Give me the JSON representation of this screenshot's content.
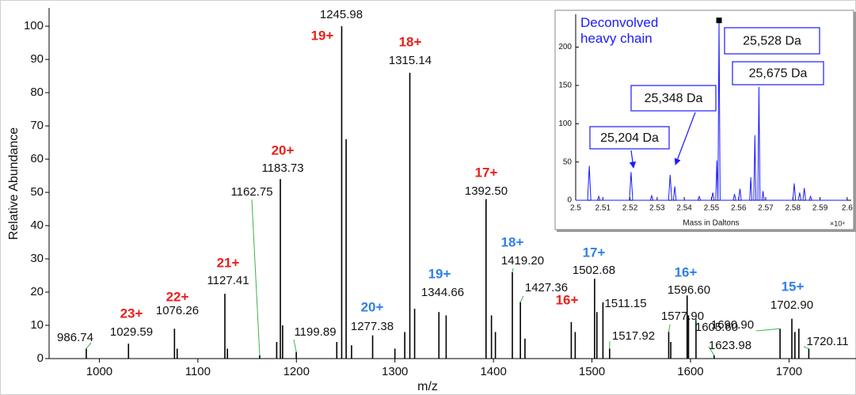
{
  "chart_data": [
    {
      "type": "spectrum",
      "x_label": "m/z",
      "y_label": "Relative Abundance",
      "xlim": [
        949,
        1768
      ],
      "xticks": [
        1000,
        1100,
        1200,
        1300,
        1400,
        1500,
        1600,
        1700
      ],
      "ylim": [
        0,
        105.5
      ],
      "yticks": [
        0,
        10,
        20,
        30,
        40,
        50,
        60,
        70,
        80,
        90,
        100
      ],
      "series": [
        {
          "color": "#000000",
          "x": [
            986.74,
            1029.59,
            1076.26,
            1127.41,
            1162.75,
            1183.73,
            1199.89,
            1245.98,
            1277.38,
            1315.14,
            1344.66,
            1392.5,
            1419.2,
            1427.36,
            1502.68,
            1511.15,
            1517.92,
            1577.9,
            1596.6,
            1605.6,
            1623.98,
            1690.9,
            1702.9,
            1720.11
          ],
          "values": [
            3,
            4.5,
            9,
            19.5,
            1,
            54,
            2,
            100,
            7,
            86,
            14,
            48,
            26,
            17,
            24,
            17,
            3,
            8,
            19,
            12,
            1,
            9,
            12,
            3
          ],
          "x_labels": [
            "986.74",
            "1029.59",
            "1076.26",
            "1127.41",
            "1162.75",
            "1183.73",
            "1199.89",
            "1245.98",
            "1277.38",
            "1315.14",
            "1344.66",
            "1392.50",
            "1419.20",
            "1427.36",
            "1502.68",
            "1511.15",
            "1517.92",
            "1577.90",
            "1596.60",
            "1605.60",
            "1623.98",
            "1690.90",
            "1702.90",
            "1720.11"
          ]
        },
        {
          "color": "#000000",
          "x": [
            1079,
            1130,
            1180,
            1186,
            1241,
            1250.5,
            1256,
            1300,
            1310,
            1320,
            1352,
            1398,
            1402,
            1432,
            1479,
            1483,
            1505,
            1580,
            1598,
            1706,
            1710
          ],
          "values": [
            3,
            3,
            5,
            10,
            5,
            66,
            4,
            3,
            8,
            15,
            13,
            13,
            8,
            6,
            11,
            8,
            14,
            5,
            13,
            8,
            9
          ]
        }
      ],
      "charges": [
        {
          "label": "23+",
          "x": 1029.59,
          "color": "#e8201a"
        },
        {
          "label": "22+",
          "x": 1076.26,
          "color": "#e8201a"
        },
        {
          "label": "21+",
          "x": 1127.41,
          "color": "#e8201a"
        },
        {
          "label": "20+",
          "x": 1183.73,
          "color": "#e8201a"
        },
        {
          "label": "19+",
          "x": 1245.98,
          "color": "#e8201a"
        },
        {
          "label": "18+",
          "x": 1315.14,
          "color": "#e8201a"
        },
        {
          "label": "17+",
          "x": 1392.5,
          "color": "#e8201a"
        },
        {
          "label": "16+",
          "x": 1479,
          "color": "#e8201a"
        },
        {
          "label": "20+",
          "x": 1277.38,
          "color": "#2f7fe8"
        },
        {
          "label": "19+",
          "x": 1344.66,
          "color": "#2f7fe8"
        },
        {
          "label": "18+",
          "x": 1419.2,
          "color": "#2f7fe8"
        },
        {
          "label": "17+",
          "x": 1502.68,
          "color": "#2f7fe8"
        },
        {
          "label": "16+",
          "x": 1596.6,
          "color": "#2f7fe8"
        },
        {
          "label": "15+",
          "x": 1702.9,
          "color": "#2f7fe8"
        }
      ]
    },
    {
      "type": "line",
      "title": "Deconvolved heavy chain",
      "x_label": "Mass in Daltons",
      "x_scale_label": "×10⁴",
      "xlim": [
        2.5,
        2.6015
      ],
      "xticks": [
        2.5,
        2.51,
        2.52,
        2.53,
        2.54,
        2.55,
        2.56,
        2.57,
        2.58,
        2.59,
        2.6
      ],
      "ylim": [
        0,
        243
      ],
      "yticks": [
        0,
        50,
        100,
        150,
        200
      ],
      "series": [
        {
          "color": "#1a1aff",
          "x": [
            2.5,
            2.5044,
            2.505,
            2.5056,
            2.508,
            2.5085,
            2.509,
            2.5198,
            2.5204,
            2.521,
            2.5275,
            2.528,
            2.5285,
            2.5342,
            2.5348,
            2.5354,
            2.536,
            2.5365,
            2.537,
            2.545,
            2.5455,
            2.546,
            2.55,
            2.5505,
            2.551,
            2.5516,
            2.552,
            2.5524,
            2.5528,
            2.5532,
            2.558,
            2.5585,
            2.559,
            2.56,
            2.5605,
            2.561,
            2.5641,
            2.5645,
            2.5649,
            2.5656,
            2.566,
            2.5664,
            2.5671,
            2.5675,
            2.5679,
            2.5686,
            2.569,
            2.5694,
            2.58,
            2.5805,
            2.581,
            2.582,
            2.5825,
            2.583,
            2.5837,
            2.5842,
            2.5847,
            2.586,
            2.5865,
            2.587,
            2.6
          ],
          "values": [
            0,
            0,
            45,
            0,
            0,
            5,
            0,
            0,
            37,
            0,
            0,
            6,
            0,
            0,
            33,
            0,
            0,
            18,
            0,
            0,
            5,
            0,
            0,
            10,
            0,
            0,
            52,
            0,
            235,
            0,
            0,
            8,
            0,
            0,
            15,
            0,
            0,
            30,
            0,
            0,
            85,
            0,
            0,
            148,
            0,
            0,
            12,
            0,
            0,
            22,
            0,
            0,
            10,
            0,
            0,
            16,
            0,
            0,
            5,
            0,
            0
          ]
        }
      ],
      "annotations": [
        {
          "text": "25,204 Da",
          "x": 2.5204
        },
        {
          "text": "25,348 Da",
          "x": 2.5348
        },
        {
          "text": "25,528 Da",
          "x": 2.5528
        },
        {
          "text": "25,675 Da",
          "x": 2.5675
        }
      ]
    }
  ]
}
